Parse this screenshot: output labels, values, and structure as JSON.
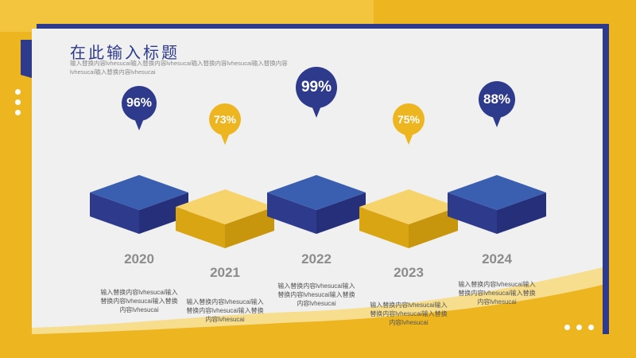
{
  "header": {
    "title": "在此输入标题",
    "subtitle": "输入替换内容lvhesucai输入替换内容lvhesucai输入替换内容lvhesucai输入替换内容lvhesucai输入替换内容lvhesucai"
  },
  "colors": {
    "blue": "#2E3A8C",
    "blue_top": "#3B5FB0",
    "yellow": "#EDB51F",
    "yellow_top": "#F7D36B"
  },
  "timeline": [
    {
      "year": "2020",
      "percent": "96%",
      "color": "blue",
      "description": "输入替换内容lvhesucai输入替换内容lvhesucai输入替换内容lvhesucai"
    },
    {
      "year": "2021",
      "percent": "73%",
      "color": "yellow",
      "description": "输入替换内容lvhesucai输入替换内容lvhesucai输入替换内容lvhesucai"
    },
    {
      "year": "2022",
      "percent": "99%",
      "color": "blue",
      "description": "输入替换内容lvhesucai输入替换内容lvhesucai输入替换内容lvhesucai"
    },
    {
      "year": "2023",
      "percent": "75%",
      "color": "yellow",
      "description": "输入替换内容lvhesucai输入替换内容lvhesucai输入替换内容lvhesucai"
    },
    {
      "year": "2024",
      "percent": "88%",
      "color": "blue",
      "description": "输入替换内容lvhesucai输入替换内容lvhesucai输入替换内容lvhesucai"
    }
  ]
}
